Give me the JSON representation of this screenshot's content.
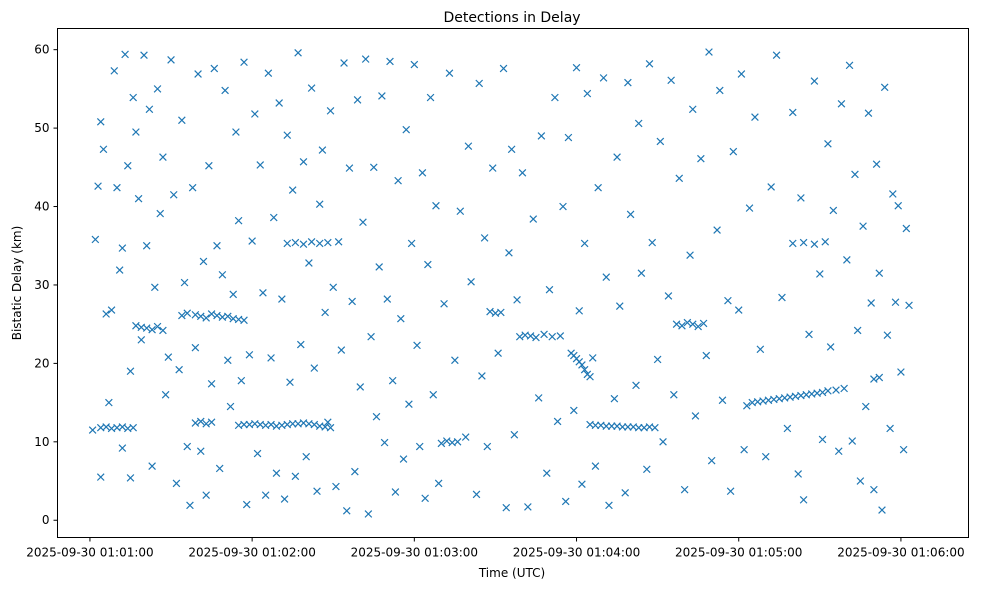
{
  "chart_data": {
    "type": "scatter",
    "title": "Detections in Delay",
    "xlabel": "Time (UTC)",
    "ylabel": "Bistatic Delay (km)",
    "x_units": "seconds after 2025-09-30 01:01:00",
    "xlim": [
      -12,
      325
    ],
    "ylim": [
      -2.2,
      62.7
    ],
    "x_ticks": [
      0,
      60,
      120,
      180,
      240,
      300
    ],
    "x_tick_labels": [
      "2025-09-30 01:01:00",
      "2025-09-30 01:02:00",
      "2025-09-30 01:03:00",
      "2025-09-30 01:04:00",
      "2025-09-30 01:05:00",
      "2025-09-30 01:06:00"
    ],
    "y_ticks": [
      0,
      10,
      20,
      30,
      40,
      50,
      60
    ],
    "y_tick_labels": [
      "0",
      "10",
      "20",
      "30",
      "40",
      "50",
      "60"
    ],
    "grid": false,
    "marker": "x",
    "color": "#1f77b4",
    "points": [
      [
        55,
        12.1
      ],
      [
        57,
        12.2
      ],
      [
        59,
        12.2
      ],
      [
        61,
        12.3
      ],
      [
        63,
        12.2
      ],
      [
        65,
        12.1
      ],
      [
        67,
        12.2
      ],
      [
        69,
        12.0
      ],
      [
        71,
        12.1
      ],
      [
        73,
        12.2
      ],
      [
        75,
        12.3
      ],
      [
        77,
        12.3
      ],
      [
        79,
        12.4
      ],
      [
        81,
        12.3
      ],
      [
        83,
        12.2
      ],
      [
        85,
        12.0
      ],
      [
        87,
        11.9
      ],
      [
        89,
        11.8
      ],
      [
        185,
        12.2
      ],
      [
        187,
        12.1
      ],
      [
        189,
        12.1
      ],
      [
        191,
        12.0
      ],
      [
        193,
        12.0
      ],
      [
        195,
        12.0
      ],
      [
        197,
        11.9
      ],
      [
        199,
        11.9
      ],
      [
        201,
        11.9
      ],
      [
        203,
        11.8
      ],
      [
        205,
        11.8
      ],
      [
        207,
        11.9
      ],
      [
        209,
        11.8
      ],
      [
        243,
        14.6
      ],
      [
        245,
        15.0
      ],
      [
        247,
        15.1
      ],
      [
        249,
        15.2
      ],
      [
        251,
        15.3
      ],
      [
        253,
        15.4
      ],
      [
        255,
        15.5
      ],
      [
        257,
        15.6
      ],
      [
        259,
        15.7
      ],
      [
        261,
        15.8
      ],
      [
        263,
        15.9
      ],
      [
        265,
        16.0
      ],
      [
        267,
        16.1
      ],
      [
        269,
        16.2
      ],
      [
        271,
        16.3
      ],
      [
        273,
        16.5
      ],
      [
        276,
        16.6
      ],
      [
        39,
        26.2
      ],
      [
        41,
        26.0
      ],
      [
        43,
        25.8
      ],
      [
        45,
        26.3
      ],
      [
        47,
        26.1
      ],
      [
        49,
        25.9
      ],
      [
        51,
        26.0
      ],
      [
        53,
        25.7
      ],
      [
        55,
        25.6
      ],
      [
        57,
        25.5
      ],
      [
        36,
        26.4
      ],
      [
        34,
        26.1
      ],
      [
        17,
        24.8
      ],
      [
        19,
        24.6
      ],
      [
        21,
        24.5
      ],
      [
        23,
        24.3
      ],
      [
        25,
        24.7
      ],
      [
        27,
        24.2
      ],
      [
        4,
        11.8
      ],
      [
        6,
        11.9
      ],
      [
        8,
        11.7
      ],
      [
        10,
        11.8
      ],
      [
        12,
        11.9
      ],
      [
        14,
        11.7
      ],
      [
        16,
        11.8
      ],
      [
        39,
        12.4
      ],
      [
        41,
        12.6
      ],
      [
        43,
        12.3
      ],
      [
        45,
        12.5
      ],
      [
        73,
        35.3
      ],
      [
        76,
        35.4
      ],
      [
        79,
        35.2
      ],
      [
        82,
        35.5
      ],
      [
        85,
        35.3
      ],
      [
        88,
        35.4
      ],
      [
        159,
        23.4
      ],
      [
        161,
        23.6
      ],
      [
        163,
        23.5
      ],
      [
        165,
        23.3
      ],
      [
        168,
        23.7
      ],
      [
        171,
        23.4
      ],
      [
        174,
        23.5
      ],
      [
        178,
        21.3
      ],
      [
        179,
        21.0
      ],
      [
        180,
        20.6
      ],
      [
        181,
        20.2
      ],
      [
        182,
        19.8
      ],
      [
        183,
        19.2
      ],
      [
        184,
        18.6
      ],
      [
        185,
        18.3
      ],
      [
        217,
        25.0
      ],
      [
        219,
        24.8
      ],
      [
        221,
        25.2
      ],
      [
        223,
        25.0
      ],
      [
        225,
        24.7
      ],
      [
        227,
        25.1
      ],
      [
        260,
        35.3
      ],
      [
        264,
        35.4
      ],
      [
        268,
        35.2
      ],
      [
        272,
        35.5
      ],
      [
        130,
        9.8
      ],
      [
        132,
        10.1
      ],
      [
        134,
        9.9
      ],
      [
        136,
        10.0
      ],
      [
        148,
        26.6
      ],
      [
        150,
        26.4
      ],
      [
        152,
        26.5
      ],
      [
        290,
        18.0
      ],
      [
        292,
        18.2
      ],
      [
        1,
        11.5
      ],
      [
        2,
        35.8
      ],
      [
        3,
        42.6
      ],
      [
        4,
        5.5
      ],
      [
        4,
        50.8
      ],
      [
        5,
        47.3
      ],
      [
        6,
        26.3
      ],
      [
        7,
        15.0
      ],
      [
        8,
        26.8
      ],
      [
        9,
        57.3
      ],
      [
        10,
        42.4
      ],
      [
        11,
        31.9
      ],
      [
        12,
        9.2
      ],
      [
        12,
        34.7
      ],
      [
        13,
        59.4
      ],
      [
        14,
        45.2
      ],
      [
        15,
        5.4
      ],
      [
        15,
        19.0
      ],
      [
        16,
        53.9
      ],
      [
        17,
        49.5
      ],
      [
        18,
        41.0
      ],
      [
        19,
        23.0
      ],
      [
        20,
        59.3
      ],
      [
        21,
        35.0
      ],
      [
        22,
        52.4
      ],
      [
        23,
        6.9
      ],
      [
        24,
        29.7
      ],
      [
        25,
        55.0
      ],
      [
        26,
        39.1
      ],
      [
        27,
        46.3
      ],
      [
        28,
        16.0
      ],
      [
        29,
        20.8
      ],
      [
        30,
        58.7
      ],
      [
        31,
        41.5
      ],
      [
        32,
        4.7
      ],
      [
        33,
        19.2
      ],
      [
        34,
        51.0
      ],
      [
        35,
        30.3
      ],
      [
        36,
        9.4
      ],
      [
        37,
        1.9
      ],
      [
        38,
        42.4
      ],
      [
        39,
        22.0
      ],
      [
        40,
        56.9
      ],
      [
        41,
        8.8
      ],
      [
        42,
        33.0
      ],
      [
        43,
        3.2
      ],
      [
        44,
        45.2
      ],
      [
        45,
        17.4
      ],
      [
        46,
        57.6
      ],
      [
        47,
        35.0
      ],
      [
        48,
        6.6
      ],
      [
        49,
        31.3
      ],
      [
        50,
        54.8
      ],
      [
        51,
        20.4
      ],
      [
        52,
        14.5
      ],
      [
        53,
        28.8
      ],
      [
        54,
        49.5
      ],
      [
        55,
        38.2
      ],
      [
        56,
        17.8
      ],
      [
        57,
        58.4
      ],
      [
        58,
        2.0
      ],
      [
        59,
        21.1
      ],
      [
        60,
        35.6
      ],
      [
        61,
        51.8
      ],
      [
        62,
        8.5
      ],
      [
        63,
        45.3
      ],
      [
        64,
        29.0
      ],
      [
        65,
        3.2
      ],
      [
        66,
        57.0
      ],
      [
        67,
        20.7
      ],
      [
        68,
        38.6
      ],
      [
        69,
        6.0
      ],
      [
        70,
        53.2
      ],
      [
        71,
        28.2
      ],
      [
        72,
        2.7
      ],
      [
        73,
        49.1
      ],
      [
        74,
        17.6
      ],
      [
        75,
        42.1
      ],
      [
        76,
        5.6
      ],
      [
        77,
        59.6
      ],
      [
        78,
        22.4
      ],
      [
        79,
        45.7
      ],
      [
        80,
        8.1
      ],
      [
        81,
        32.8
      ],
      [
        82,
        55.1
      ],
      [
        83,
        19.4
      ],
      [
        84,
        3.7
      ],
      [
        85,
        40.3
      ],
      [
        86,
        47.2
      ],
      [
        87,
        26.5
      ],
      [
        88,
        12.5
      ],
      [
        89,
        52.2
      ],
      [
        90,
        29.7
      ],
      [
        91,
        4.3
      ],
      [
        92,
        35.5
      ],
      [
        93,
        21.7
      ],
      [
        94,
        58.3
      ],
      [
        95,
        1.2
      ],
      [
        96,
        44.9
      ],
      [
        97,
        27.9
      ],
      [
        98,
        6.2
      ],
      [
        99,
        53.6
      ],
      [
        100,
        17.0
      ],
      [
        101,
        38.0
      ],
      [
        102,
        58.8
      ],
      [
        103,
        0.8
      ],
      [
        104,
        23.4
      ],
      [
        105,
        45.0
      ],
      [
        106,
        13.2
      ],
      [
        107,
        32.3
      ],
      [
        108,
        54.1
      ],
      [
        109,
        9.9
      ],
      [
        110,
        28.2
      ],
      [
        111,
        58.5
      ],
      [
        112,
        17.8
      ],
      [
        113,
        3.6
      ],
      [
        114,
        43.3
      ],
      [
        115,
        25.7
      ],
      [
        116,
        7.8
      ],
      [
        117,
        49.8
      ],
      [
        118,
        14.8
      ],
      [
        119,
        35.3
      ],
      [
        120,
        58.1
      ],
      [
        121,
        22.3
      ],
      [
        122,
        9.4
      ],
      [
        123,
        44.3
      ],
      [
        124,
        2.8
      ],
      [
        125,
        32.6
      ],
      [
        126,
        53.9
      ],
      [
        127,
        16.0
      ],
      [
        128,
        40.1
      ],
      [
        129,
        4.7
      ],
      [
        131,
        27.6
      ],
      [
        133,
        57.0
      ],
      [
        135,
        20.4
      ],
      [
        137,
        39.4
      ],
      [
        139,
        10.6
      ],
      [
        140,
        47.7
      ],
      [
        141,
        30.4
      ],
      [
        143,
        3.3
      ],
      [
        144,
        55.7
      ],
      [
        145,
        18.4
      ],
      [
        146,
        36.0
      ],
      [
        147,
        9.4
      ],
      [
        149,
        44.9
      ],
      [
        151,
        21.3
      ],
      [
        153,
        57.6
      ],
      [
        154,
        1.6
      ],
      [
        155,
        34.1
      ],
      [
        156,
        47.3
      ],
      [
        157,
        10.9
      ],
      [
        158,
        28.1
      ],
      [
        160,
        44.3
      ],
      [
        162,
        1.7
      ],
      [
        164,
        38.4
      ],
      [
        166,
        15.6
      ],
      [
        167,
        49.0
      ],
      [
        169,
        6.0
      ],
      [
        170,
        29.4
      ],
      [
        172,
        53.9
      ],
      [
        173,
        12.6
      ],
      [
        175,
        40.0
      ],
      [
        176,
        2.4
      ],
      [
        177,
        48.8
      ],
      [
        179,
        14.0
      ],
      [
        180,
        57.7
      ],
      [
        181,
        26.7
      ],
      [
        182,
        4.6
      ],
      [
        183,
        35.3
      ],
      [
        184,
        54.4
      ],
      [
        186,
        20.7
      ],
      [
        187,
        6.9
      ],
      [
        188,
        42.4
      ],
      [
        190,
        56.4
      ],
      [
        191,
        31.0
      ],
      [
        192,
        1.9
      ],
      [
        194,
        15.5
      ],
      [
        195,
        46.3
      ],
      [
        196,
        27.3
      ],
      [
        198,
        3.5
      ],
      [
        199,
        55.8
      ],
      [
        200,
        39.0
      ],
      [
        202,
        17.2
      ],
      [
        203,
        50.6
      ],
      [
        204,
        31.5
      ],
      [
        206,
        6.5
      ],
      [
        207,
        58.2
      ],
      [
        208,
        35.4
      ],
      [
        210,
        20.5
      ],
      [
        211,
        48.3
      ],
      [
        212,
        10.0
      ],
      [
        214,
        28.6
      ],
      [
        215,
        56.1
      ],
      [
        216,
        16.0
      ],
      [
        218,
        43.6
      ],
      [
        220,
        3.9
      ],
      [
        222,
        33.8
      ],
      [
        223,
        52.4
      ],
      [
        224,
        13.3
      ],
      [
        226,
        46.1
      ],
      [
        228,
        21.0
      ],
      [
        229,
        59.7
      ],
      [
        230,
        7.6
      ],
      [
        232,
        37.0
      ],
      [
        233,
        54.8
      ],
      [
        234,
        15.3
      ],
      [
        236,
        28.0
      ],
      [
        237,
        3.7
      ],
      [
        238,
        47.0
      ],
      [
        240,
        26.8
      ],
      [
        241,
        56.9
      ],
      [
        242,
        9.0
      ],
      [
        244,
        39.8
      ],
      [
        246,
        51.4
      ],
      [
        248,
        21.8
      ],
      [
        250,
        8.1
      ],
      [
        252,
        42.5
      ],
      [
        254,
        59.3
      ],
      [
        256,
        28.4
      ],
      [
        258,
        11.7
      ],
      [
        260,
        52.0
      ],
      [
        262,
        5.9
      ],
      [
        263,
        41.1
      ],
      [
        264,
        2.6
      ],
      [
        266,
        23.7
      ],
      [
        268,
        56.0
      ],
      [
        270,
        31.4
      ],
      [
        271,
        10.3
      ],
      [
        273,
        48.0
      ],
      [
        274,
        22.1
      ],
      [
        275,
        39.5
      ],
      [
        277,
        8.8
      ],
      [
        278,
        53.1
      ],
      [
        279,
        16.8
      ],
      [
        280,
        33.2
      ],
      [
        281,
        58.0
      ],
      [
        282,
        10.1
      ],
      [
        283,
        44.1
      ],
      [
        284,
        24.2
      ],
      [
        285,
        5.0
      ],
      [
        286,
        37.5
      ],
      [
        287,
        14.5
      ],
      [
        288,
        51.9
      ],
      [
        289,
        27.7
      ],
      [
        290,
        3.9
      ],
      [
        291,
        45.4
      ],
      [
        292,
        31.5
      ],
      [
        293,
        1.3
      ],
      [
        294,
        55.2
      ],
      [
        295,
        23.6
      ],
      [
        296,
        11.7
      ],
      [
        297,
        41.6
      ],
      [
        298,
        27.8
      ],
      [
        299,
        40.1
      ],
      [
        300,
        18.9
      ],
      [
        301,
        9.0
      ],
      [
        302,
        37.2
      ],
      [
        303,
        27.4
      ]
    ]
  }
}
